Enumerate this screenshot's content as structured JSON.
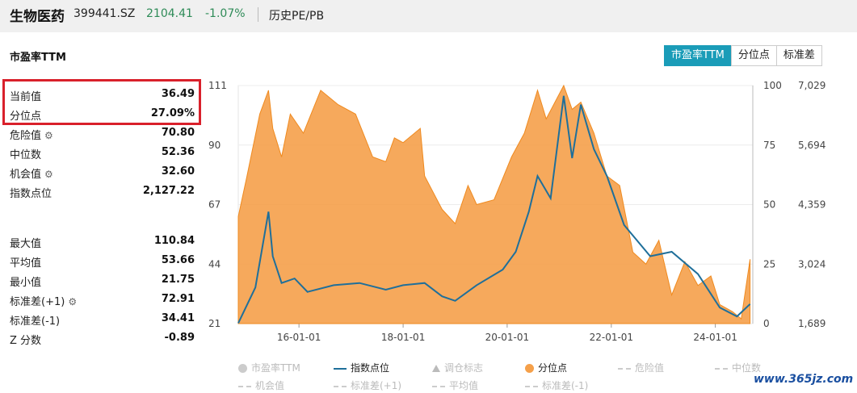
{
  "header": {
    "name": "生物医药",
    "code": "399441.SZ",
    "price": "2104.41",
    "change": "-1.07%",
    "history_link": "历史PE/PB"
  },
  "section_title": "市盈率TTM",
  "tabs": [
    {
      "label": "市盈率TTM",
      "active": true
    },
    {
      "label": "分位点",
      "active": false
    },
    {
      "label": "标准差",
      "active": false
    }
  ],
  "stats": {
    "highlight": [
      {
        "label": "当前值",
        "value": "36.49"
      },
      {
        "label": "分位点",
        "value": "27.09%"
      }
    ],
    "group1": [
      {
        "label": "危险值",
        "value": "70.80",
        "gear": true
      },
      {
        "label": "中位数",
        "value": "52.36",
        "gear": false
      },
      {
        "label": "机会值",
        "value": "32.60",
        "gear": true
      },
      {
        "label": "指数点位",
        "value": "2,127.22",
        "gear": false
      }
    ],
    "group2": [
      {
        "label": "最大值",
        "value": "110.84",
        "gear": false
      },
      {
        "label": "平均值",
        "value": "53.66",
        "gear": false
      },
      {
        "label": "最小值",
        "value": "21.75",
        "gear": false
      },
      {
        "label": "标准差(+1)",
        "value": "72.91",
        "gear": true
      },
      {
        "label": "标准差(-1)",
        "value": "34.41",
        "gear": false
      },
      {
        "label": "Z 分数",
        "value": "-0.89",
        "gear": false
      }
    ]
  },
  "chart_data": {
    "type": "area",
    "x_ticks": [
      "16-01-01",
      "18-01-01",
      "20-01-01",
      "22-01-01",
      "24-01-01"
    ],
    "x_range": [
      "2014-11-01",
      "2024-09-20"
    ],
    "left_axis": {
      "ticks": [
        "111",
        "90",
        "67",
        "44",
        "21"
      ],
      "range": [
        21,
        111
      ]
    },
    "right_axis_1": {
      "ticks": [
        "100",
        "75",
        "50",
        "25",
        "0"
      ],
      "range": [
        0,
        100
      ]
    },
    "right_axis_2": {
      "ticks": [
        "7,029",
        "5,694",
        "4,359",
        "3,024",
        "1,689"
      ],
      "range": [
        1689,
        7029
      ]
    },
    "series": [
      {
        "name": "分位点",
        "color": "#f5a04a",
        "axis": "right_axis_1",
        "x": [
          "2014-11",
          "2015-01",
          "2015-04",
          "2015-06",
          "2015-07",
          "2015-09",
          "2015-11",
          "2016-02",
          "2016-06",
          "2016-10",
          "2017-02",
          "2017-06",
          "2017-09",
          "2017-11",
          "2018-01",
          "2018-05",
          "2018-06",
          "2018-10",
          "2019-01",
          "2019-04",
          "2019-06",
          "2019-10",
          "2020-02",
          "2020-05",
          "2020-08",
          "2020-10",
          "2021-02",
          "2021-04",
          "2021-06",
          "2021-09",
          "2021-12",
          "2022-03",
          "2022-06",
          "2022-09",
          "2022-12",
          "2023-03",
          "2023-06",
          "2023-09",
          "2023-12",
          "2024-02",
          "2024-05",
          "2024-07",
          "2024-09"
        ],
        "values": [
          45,
          62,
          88,
          98,
          82,
          70,
          88,
          80,
          98,
          92,
          88,
          70,
          68,
          78,
          76,
          82,
          62,
          48,
          42,
          58,
          50,
          52,
          70,
          80,
          98,
          86,
          100,
          90,
          93,
          80,
          62,
          58,
          30,
          25,
          35,
          12,
          26,
          16,
          20,
          8,
          5,
          2,
          27
        ]
      },
      {
        "name": "指数点位",
        "color": "#1f6f9a",
        "axis": "right_axis_2",
        "x": [
          "2014-11",
          "2015-03",
          "2015-06",
          "2015-07",
          "2015-09",
          "2015-12",
          "2016-03",
          "2016-09",
          "2017-03",
          "2017-09",
          "2018-01",
          "2018-06",
          "2018-10",
          "2019-01",
          "2019-06",
          "2019-12",
          "2020-03",
          "2020-06",
          "2020-08",
          "2020-11",
          "2021-02",
          "2021-04",
          "2021-06",
          "2021-09",
          "2021-12",
          "2022-04",
          "2022-10",
          "2023-03",
          "2023-09",
          "2024-02",
          "2024-06",
          "2024-09"
        ],
        "values": [
          1700,
          2500,
          4200,
          3200,
          2600,
          2700,
          2400,
          2550,
          2600,
          2450,
          2550,
          2600,
          2300,
          2200,
          2550,
          2900,
          3300,
          4200,
          5000,
          4500,
          6800,
          5400,
          6600,
          5600,
          5000,
          3900,
          3200,
          3300,
          2800,
          2050,
          1850,
          2127
        ]
      }
    ],
    "legend": [
      "市盈率TTM",
      "指数点位",
      "调仓标志",
      "分位点",
      "危险值",
      "中位数",
      "机会值",
      "标准差(+1)",
      "平均值",
      "标准差(-1)"
    ]
  },
  "watermark": "www.365jz.com"
}
